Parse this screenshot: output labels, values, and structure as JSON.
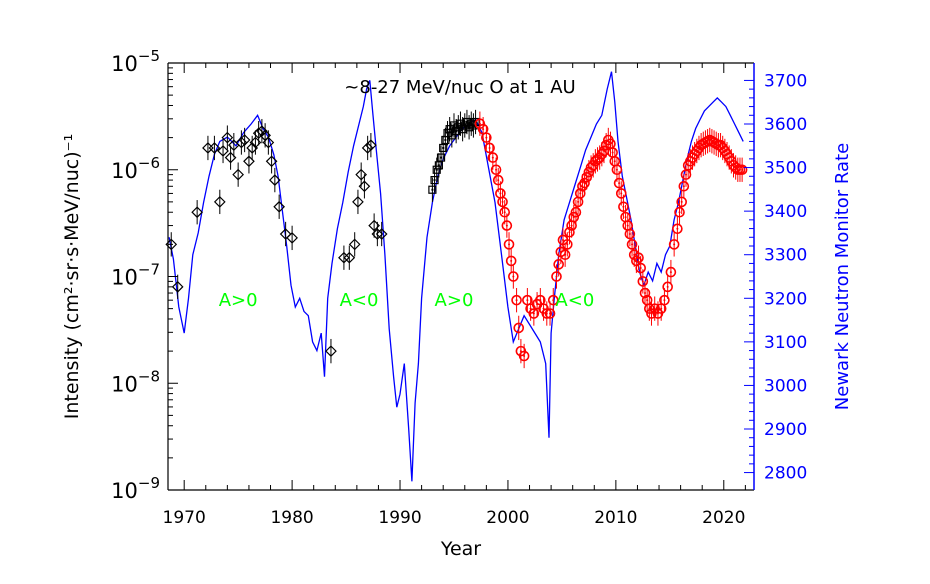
{
  "chart_data": {
    "type": "scatter",
    "title": "~8-27 MeV/nuc O at 1 AU",
    "xlabel": "Year",
    "ylabel_left": "Intensity (cm²·sr·s·MeV/nuc)⁻¹",
    "ylabel_right": "Newark Neutron Monitor Rate",
    "xlim": [
      1968.5,
      2022.8
    ],
    "ylim_left": [
      1e-09,
      1e-05
    ],
    "ylim_right": [
      2760,
      3740
    ],
    "y_left_scale": "log",
    "x_ticks": [
      "1970",
      "1980",
      "1990",
      "2000",
      "2010",
      "2020"
    ],
    "y_left_ticks": [
      {
        "value": 1e-05,
        "base": "10",
        "exp": "−5"
      },
      {
        "value": 1e-06,
        "base": "10",
        "exp": "−6"
      },
      {
        "value": 1e-07,
        "base": "10",
        "exp": "−7"
      },
      {
        "value": 1e-08,
        "base": "10",
        "exp": "−8"
      },
      {
        "value": 1e-09,
        "base": "10",
        "exp": "−9"
      }
    ],
    "y_right_ticks": [
      "2800",
      "2900",
      "3000",
      "3100",
      "3200",
      "3300",
      "3400",
      "3500",
      "3600",
      "3700"
    ],
    "annotations": [
      {
        "text": "A>0",
        "x": 1975.0,
        "y": 6e-08
      },
      {
        "text": "A<0",
        "x": 1986.2,
        "y": 6e-08
      },
      {
        "text": "A>0",
        "x": 1995.0,
        "y": 6e-08
      },
      {
        "text": "A<0",
        "x": 2006.2,
        "y": 6e-08
      }
    ],
    "colors": {
      "oxygen_early": "#000000",
      "oxygen_recent": "#ff0000",
      "neutron": "#0000ff",
      "annotation": "#00ff00",
      "right_axis": "#0000ff"
    },
    "series": [
      {
        "marker": "diamond",
        "color": "#000000",
        "axis": "left",
        "x": [
          1968.8,
          1969.4,
          1971.2,
          1972.2,
          1972.8,
          1973.3,
          1973.6,
          1974.0,
          1974.3,
          1974.6,
          1975.0,
          1975.3,
          1975.6,
          1976.0,
          1976.3,
          1976.6,
          1976.9,
          1977.2,
          1977.5,
          1977.8,
          1978.1,
          1978.4,
          1978.8,
          1979.4,
          1980.0,
          1983.6,
          1984.8,
          1985.3,
          1985.8,
          1986.1,
          1986.4,
          1986.7,
          1987.0,
          1987.3,
          1987.6,
          1987.9,
          1988.3
        ],
        "y": [
          2e-07,
          8e-08,
          4e-07,
          1.6e-06,
          1.6e-06,
          5e-07,
          1.5e-06,
          2e-06,
          1.3e-06,
          1.7e-06,
          9e-07,
          1.8e-06,
          1.9e-06,
          1.2e-06,
          1.6e-06,
          1.8e-06,
          2.2e-06,
          2.3e-06,
          2.1e-06,
          1.8e-06,
          1.2e-06,
          8e-07,
          4.5e-07,
          2.5e-07,
          2.3e-07,
          2e-08,
          1.5e-07,
          1.5e-07,
          2e-07,
          5e-07,
          9e-07,
          7e-07,
          1.6e-06,
          1.7e-06,
          3e-07,
          2.5e-07,
          2.5e-07
        ]
      },
      {
        "marker": "square",
        "color": "#000000",
        "axis": "left",
        "x": [
          1993.0,
          1993.2,
          1993.4,
          1993.6,
          1993.8,
          1994.0,
          1994.2,
          1994.4,
          1994.6,
          1994.8,
          1995.0,
          1995.2,
          1995.4,
          1995.6,
          1995.8,
          1996.0,
          1996.2,
          1996.4,
          1996.6,
          1996.8,
          1997.0
        ],
        "y": [
          6.5e-07,
          8e-07,
          1e-06,
          1.1e-06,
          1.3e-06,
          1.6e-06,
          1.9e-06,
          2.2e-06,
          2.4e-06,
          2.1e-06,
          2.6e-06,
          2.3e-06,
          2.5e-06,
          2.7e-06,
          2.4e-06,
          2.6e-06,
          2.8e-06,
          2.5e-06,
          2.7e-06,
          2.6e-06,
          2.8e-06
        ]
      },
      {
        "marker": "circle-dot",
        "color": "#ff0000",
        "axis": "left",
        "x": [
          1997.4,
          1997.7,
          1998.0,
          1998.3,
          1998.6,
          1998.9,
          1999.1,
          1999.3,
          1999.5,
          1999.7,
          1999.9,
          2000.1,
          2000.3,
          2000.5,
          2000.8,
          2001.0,
          2001.2,
          2001.5,
          2001.8,
          2002.1,
          2002.4,
          2002.7,
          2003.0,
          2003.3,
          2003.6,
          2003.9,
          2004.2,
          2004.5,
          2004.7,
          2004.9,
          2005.1,
          2005.3,
          2005.5,
          2005.7,
          2005.9,
          2006.1,
          2006.3,
          2006.5,
          2006.7,
          2006.9,
          2007.1,
          2007.3,
          2007.5,
          2007.7,
          2007.9,
          2008.1,
          2008.3,
          2008.5,
          2008.7,
          2008.9,
          2009.1,
          2009.3,
          2009.5,
          2009.7,
          2009.9,
          2010.1,
          2010.3,
          2010.5,
          2010.7,
          2010.9,
          2011.1,
          2011.3,
          2011.5,
          2011.7,
          2011.9,
          2012.1,
          2012.3,
          2012.5,
          2012.7,
          2012.9,
          2013.1,
          2013.3,
          2013.6,
          2013.9,
          2014.2,
          2014.5,
          2014.8,
          2015.1,
          2015.4,
          2015.7,
          2015.9,
          2016.1,
          2016.3,
          2016.5,
          2016.7,
          2016.9,
          2017.1,
          2017.3,
          2017.5,
          2017.7,
          2017.9,
          2018.1,
          2018.3,
          2018.5,
          2018.7,
          2018.9,
          2019.1,
          2019.3,
          2019.5,
          2019.7,
          2019.9,
          2020.1,
          2020.3,
          2020.5,
          2020.7,
          2020.9,
          2021.1,
          2021.3,
          2021.5,
          2021.7
        ],
        "y": [
          2.7e-06,
          2.4e-06,
          2e-06,
          1.6e-06,
          1.3e-06,
          1e-06,
          8e-07,
          6e-07,
          5e-07,
          4e-07,
          3e-07,
          2e-07,
          1.4e-07,
          1e-07,
          6e-08,
          3.3e-08,
          2e-08,
          1.8e-08,
          6e-08,
          5e-08,
          4.5e-08,
          5.5e-08,
          6e-08,
          5e-08,
          4.5e-08,
          4.5e-08,
          6e-08,
          1e-07,
          1.3e-07,
          1.7e-07,
          2.2e-07,
          1.6e-07,
          2e-07,
          2.6e-07,
          3e-07,
          3.6e-07,
          4e-07,
          5e-07,
          6e-07,
          7e-07,
          7.5e-07,
          8.5e-07,
          9.5e-07,
          1.05e-06,
          1.1e-06,
          1.2e-06,
          1.25e-06,
          1.3e-06,
          1.4e-06,
          1.5e-06,
          1.7e-06,
          1.9e-06,
          1.75e-06,
          1.45e-06,
          1.2e-06,
          1e-06,
          7.5e-07,
          6e-07,
          4.5e-07,
          3.6e-07,
          3e-07,
          2.5e-07,
          2e-07,
          1.6e-07,
          1.4e-07,
          1.5e-07,
          1.2e-07,
          9e-08,
          7e-08,
          6e-08,
          5e-08,
          4.5e-08,
          5e-08,
          4.5e-08,
          5e-08,
          6e-08,
          8e-08,
          1.1e-07,
          2e-07,
          2.8e-07,
          4e-07,
          5e-07,
          7e-07,
          9e-07,
          1.1e-06,
          1.2e-06,
          1.3e-06,
          1.4e-06,
          1.5e-06,
          1.6e-06,
          1.7e-06,
          1.75e-06,
          1.8e-06,
          1.85e-06,
          1.9e-06,
          1.85e-06,
          1.8e-06,
          1.75e-06,
          1.7e-06,
          1.7e-06,
          1.6e-06,
          1.5e-06,
          1.4e-06,
          1.3e-06,
          1.2e-06,
          1.1e-06,
          1.05e-06,
          1e-06,
          1e-06,
          1e-06
        ]
      },
      {
        "marker": "line",
        "color": "#0000ff",
        "axis": "right",
        "x": [
          1968.6,
          1969.0,
          1969.5,
          1970.0,
          1970.4,
          1970.8,
          1971.3,
          1971.8,
          1972.3,
          1972.8,
          1973.3,
          1974.0,
          1974.8,
          1975.5,
          1976.2,
          1976.8,
          1977.3,
          1977.8,
          1978.3,
          1978.7,
          1979.1,
          1979.5,
          1979.9,
          1980.3,
          1980.7,
          1981.1,
          1981.5,
          1981.9,
          1982.3,
          1982.7,
          1983.0,
          1983.3,
          1983.7,
          1984.2,
          1984.7,
          1985.2,
          1985.7,
          1986.2,
          1986.6,
          1986.9,
          1987.2,
          1987.5,
          1987.8,
          1988.2,
          1988.6,
          1989.0,
          1989.4,
          1989.7,
          1990.0,
          1990.4,
          1990.8,
          1991.1,
          1991.4,
          1991.7,
          1992.0,
          1992.5,
          1993.0,
          1993.5,
          1994.0,
          1994.6,
          1995.2,
          1995.8,
          1996.4,
          1997.0,
          1997.6,
          1998.2,
          1998.8,
          1999.4,
          2000.0,
          2000.5,
          2001.0,
          2001.5,
          2002.0,
          2002.5,
          2003.0,
          2003.5,
          2003.8,
          2004.0,
          2004.3,
          2004.7,
          2005.2,
          2005.7,
          2006.2,
          2006.7,
          2007.2,
          2007.7,
          2008.2,
          2008.7,
          2009.2,
          2009.6,
          2009.9,
          2010.2,
          2010.6,
          2011.0,
          2011.4,
          2011.8,
          2012.2,
          2012.6,
          2013.0,
          2013.4,
          2013.8,
          2014.2,
          2014.6,
          2015.0,
          2015.4,
          2015.8,
          2016.2,
          2016.6,
          2017.0,
          2017.4,
          2017.8,
          2018.2,
          2018.6,
          2019.0,
          2019.4,
          2019.8,
          2020.2,
          2020.6,
          2021.0,
          2021.4,
          2021.8
        ],
        "y": [
          3340,
          3290,
          3180,
          3120,
          3200,
          3300,
          3350,
          3420,
          3480,
          3530,
          3560,
          3570,
          3550,
          3580,
          3600,
          3620,
          3590,
          3570,
          3530,
          3480,
          3400,
          3320,
          3230,
          3180,
          3200,
          3170,
          3160,
          3100,
          3080,
          3120,
          3020,
          3200,
          3280,
          3360,
          3420,
          3490,
          3550,
          3600,
          3640,
          3680,
          3700,
          3620,
          3540,
          3440,
          3300,
          3130,
          3020,
          2950,
          2980,
          3050,
          2900,
          2780,
          2960,
          3050,
          3200,
          3340,
          3420,
          3480,
          3520,
          3550,
          3570,
          3590,
          3600,
          3610,
          3580,
          3500,
          3420,
          3300,
          3180,
          3100,
          3130,
          3160,
          3140,
          3120,
          3100,
          3050,
          2880,
          3120,
          3200,
          3300,
          3380,
          3420,
          3460,
          3500,
          3540,
          3570,
          3600,
          3620,
          3680,
          3720,
          3650,
          3560,
          3480,
          3430,
          3380,
          3320,
          3260,
          3230,
          3260,
          3240,
          3280,
          3260,
          3300,
          3320,
          3380,
          3420,
          3470,
          3520,
          3560,
          3590,
          3610,
          3630,
          3640,
          3650,
          3660,
          3650,
          3640,
          3620,
          3600,
          3580,
          3560
        ]
      }
    ]
  }
}
